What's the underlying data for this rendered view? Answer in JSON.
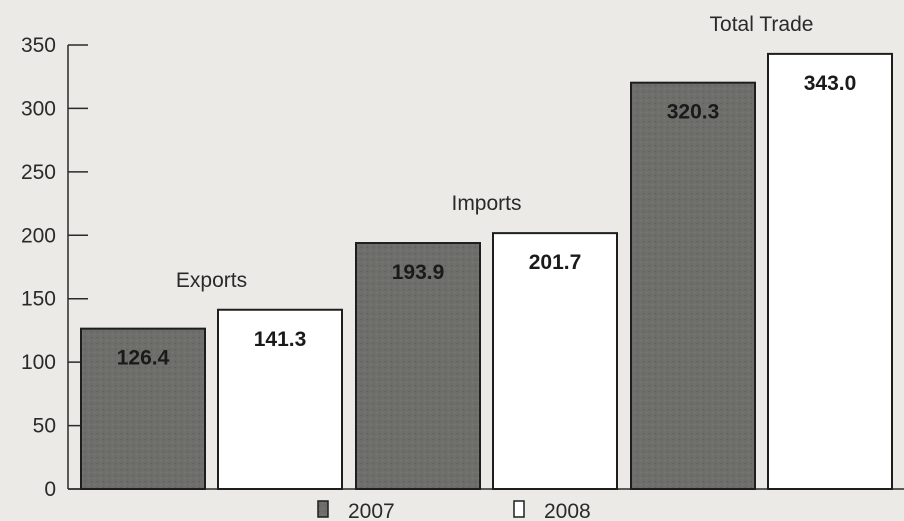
{
  "chart_data": {
    "type": "bar",
    "categories": [
      "Exports",
      "Imports",
      "Total Trade"
    ],
    "series": [
      {
        "name": "2007",
        "values": [
          126.4,
          193.9,
          320.3
        ],
        "color": "#6e6e6a",
        "label_text": "126.4|193.9|320.3"
      },
      {
        "name": "2008",
        "values": [
          141.3,
          201.7,
          343.0
        ],
        "color": "#ffffff"
      }
    ],
    "value_labels": {
      "2007": [
        "126.4",
        "193.9",
        "320.3"
      ],
      "2008": [
        "141.3",
        "201.7",
        "343.0"
      ]
    },
    "yticks": [
      "0",
      "50",
      "100",
      "150",
      "200",
      "250",
      "300",
      "350"
    ],
    "ylim": [
      0,
      350
    ],
    "legend": [
      "2007",
      "2008"
    ],
    "legend_position": "bottom-center",
    "grid": false,
    "title": "",
    "xlabel": "",
    "ylabel": ""
  }
}
